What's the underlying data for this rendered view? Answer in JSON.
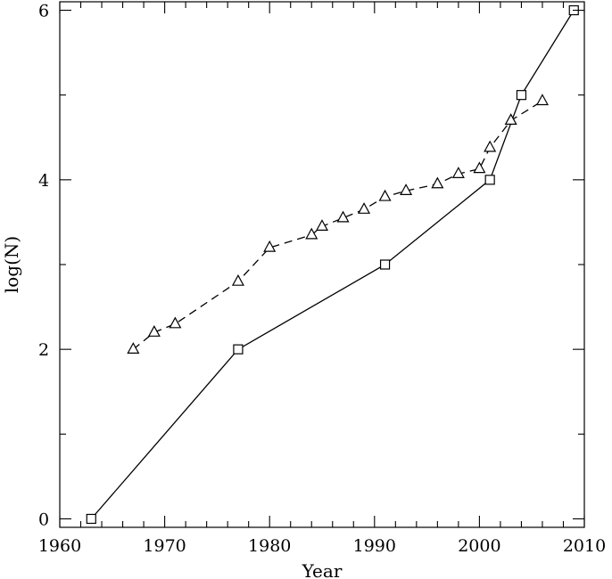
{
  "chart_data": {
    "type": "line",
    "xlabel": "Year",
    "ylabel": "log(N)",
    "xlim": [
      1960,
      2010
    ],
    "ylim": [
      -0.1,
      6.1
    ],
    "x_major_ticks": [
      1960,
      1970,
      1980,
      1990,
      2000,
      2010
    ],
    "x_minor_step": 2,
    "y_major_ticks": [
      0,
      2,
      4,
      6
    ],
    "y_minor_step": 1,
    "grid": false,
    "legend": "none",
    "series": [
      {
        "marker": "square",
        "line_style": "solid",
        "points": [
          {
            "x": 1963,
            "y": 0
          },
          {
            "x": 1977,
            "y": 2
          },
          {
            "x": 1991,
            "y": 3
          },
          {
            "x": 2001,
            "y": 4
          },
          {
            "x": 2004,
            "y": 5
          },
          {
            "x": 2009,
            "y": 6
          }
        ]
      },
      {
        "marker": "triangle",
        "line_style": "dashed",
        "points": [
          {
            "x": 1967,
            "y": 2.0
          },
          {
            "x": 1969,
            "y": 2.2
          },
          {
            "x": 1971,
            "y": 2.3
          },
          {
            "x": 1977,
            "y": 2.8
          },
          {
            "x": 1980,
            "y": 3.2
          },
          {
            "x": 1984,
            "y": 3.35
          },
          {
            "x": 1985,
            "y": 3.45
          },
          {
            "x": 1987,
            "y": 3.55
          },
          {
            "x": 1989,
            "y": 3.65
          },
          {
            "x": 1991,
            "y": 3.8
          },
          {
            "x": 1993,
            "y": 3.87
          },
          {
            "x": 1996,
            "y": 3.95
          },
          {
            "x": 1998,
            "y": 4.07
          },
          {
            "x": 2000,
            "y": 4.13
          },
          {
            "x": 2001,
            "y": 4.38
          },
          {
            "x": 2003,
            "y": 4.7
          },
          {
            "x": 2006,
            "y": 4.93
          }
        ]
      }
    ]
  }
}
